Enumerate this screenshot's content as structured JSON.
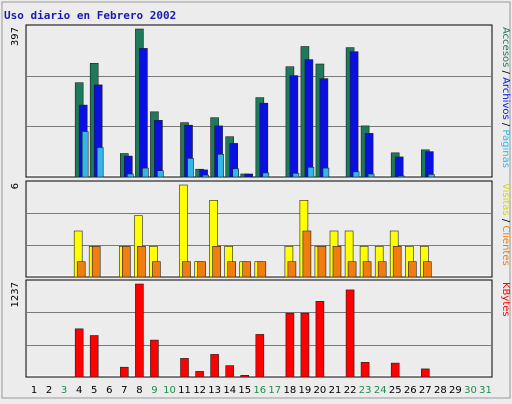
{
  "chart_data": {
    "type": "bar",
    "title": "Uso diario en Febrero 2002",
    "days": [
      "1",
      "2",
      "3",
      "4",
      "5",
      "6",
      "7",
      "8",
      "9",
      "10",
      "11",
      "12",
      "13",
      "14",
      "15",
      "16",
      "17",
      "18",
      "19",
      "20",
      "21",
      "22",
      "23",
      "24",
      "25",
      "26",
      "27",
      "28",
      "29",
      "30",
      "31"
    ],
    "weekend_days": [
      "3",
      "9",
      "10",
      "16",
      "17",
      "23",
      "24",
      "30",
      "31"
    ],
    "colors": {
      "background": "#ececec",
      "grid": "#7a7a7a",
      "weekday_label": "#000000",
      "weekend_label": "#1e8c4a",
      "separator": "#000000"
    },
    "panels": [
      {
        "name": "hits",
        "ymax_label": "397",
        "ymax": 397,
        "series": [
          {
            "name": "Accesos",
            "color": "#1d7a5a",
            "values": [
              0,
              0,
              0,
              253,
              305,
              0,
              63,
              397,
              175,
              0,
              146,
              21,
              159,
              108,
              8,
              213,
              0,
              296,
              350,
              303,
              0,
              347,
              137,
              0,
              65,
              0,
              73,
              0,
              0,
              0,
              0
            ]
          },
          {
            "name": "Archivos",
            "color": "#0a10e0",
            "values": [
              0,
              0,
              0,
              193,
              247,
              0,
              56,
              345,
              152,
              0,
              139,
              19,
              137,
              90,
              8,
              198,
              0,
              272,
              315,
              264,
              0,
              336,
              117,
              0,
              54,
              0,
              68,
              0,
              0,
              0,
              0
            ]
          },
          {
            "name": "Paginas",
            "color": "#34b6e8",
            "values": [
              0,
              0,
              0,
              122,
              79,
              0,
              8,
              24,
              17,
              0,
              50,
              5,
              61,
              22,
              0,
              11,
              0,
              10,
              26,
              24,
              0,
              14,
              8,
              0,
              3,
              0,
              7,
              0,
              0,
              0,
              0
            ]
          }
        ],
        "right_labels": [
          {
            "text": "Accesos",
            "color": "#1d7a5a"
          },
          {
            "text": " / ",
            "color": "#000000"
          },
          {
            "text": "Archivos",
            "color": "#0a10e0"
          },
          {
            "text": " / ",
            "color": "#000000"
          },
          {
            "text": "Paginas",
            "color": "#34b6e8"
          }
        ]
      },
      {
        "name": "visits",
        "ymax_label": "6",
        "ymax": 6,
        "series": [
          {
            "name": "Visitas",
            "color": "#ffff00",
            "values": [
              0,
              0,
              0,
              3,
              2,
              0,
              2,
              4,
              2,
              0,
              6,
              1,
              5,
              2,
              1,
              1,
              0,
              2,
              5,
              2,
              3,
              3,
              2,
              2,
              3,
              2,
              2,
              0,
              0,
              0,
              0
            ]
          },
          {
            "name": "Clientes",
            "color": "#f07d10",
            "values": [
              0,
              0,
              0,
              1,
              2,
              0,
              2,
              2,
              1,
              0,
              1,
              1,
              2,
              1,
              1,
              1,
              0,
              1,
              3,
              2,
              2,
              1,
              1,
              1,
              2,
              1,
              1,
              0,
              0,
              0,
              0
            ]
          }
        ],
        "right_labels": [
          {
            "text": "Visitas",
            "color": "#d9d900"
          },
          {
            "text": " / ",
            "color": "#000000"
          },
          {
            "text": "Clientes",
            "color": "#f07d10"
          }
        ]
      },
      {
        "name": "kbytes",
        "ymax_label": "1237",
        "ymax": 1237,
        "series": [
          {
            "name": "KBytes",
            "color": "#ff0000",
            "values": [
              0,
              0,
              0,
              641,
              552,
              0,
              131,
              1237,
              491,
              0,
              248,
              75,
              300,
              151,
              23,
              567,
              0,
              848,
              848,
              1007,
              0,
              1159,
              196,
              0,
              185,
              0,
              108,
              0,
              0,
              0,
              0
            ]
          }
        ],
        "right_labels": [
          {
            "text": "KBytes",
            "color": "#ff0000"
          }
        ]
      }
    ]
  }
}
